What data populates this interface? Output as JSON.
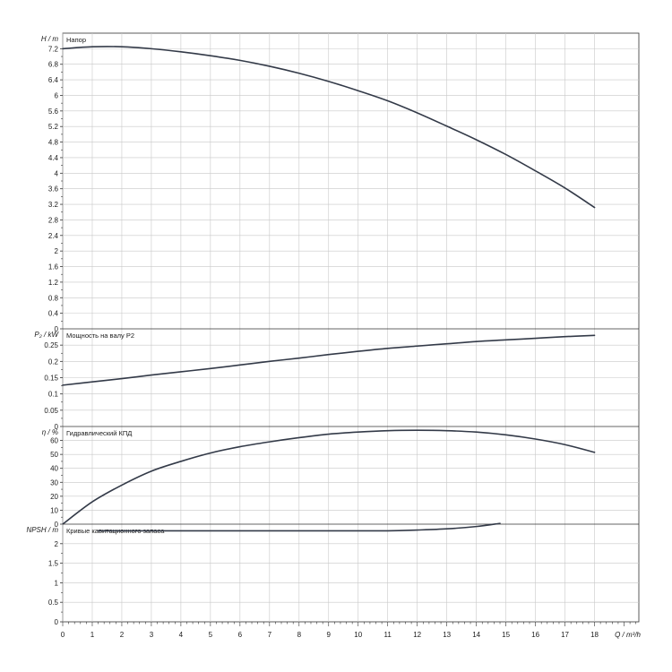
{
  "chart_data": [
    {
      "type": "line",
      "panel": "head",
      "title": "Напор",
      "ylabel": "H / m",
      "xlabel": "Q / m³/h",
      "ylim": [
        0,
        7.6
      ],
      "yticks": [
        "0",
        "0.4",
        "0.8",
        "1.2",
        "1.6",
        "2",
        "2.4",
        "2.8",
        "3.2",
        "3.6",
        "4",
        "4.4",
        "4.8",
        "5.2",
        "5.6",
        "6",
        "6.4",
        "6.8",
        "7.2"
      ],
      "grid": true,
      "series": [
        {
          "x": [
            0,
            1,
            2,
            3,
            4,
            5,
            6,
            7,
            8,
            9,
            10,
            11,
            12,
            13,
            14,
            15,
            16,
            17,
            18
          ],
          "y": [
            7.2,
            7.25,
            7.25,
            7.2,
            7.12,
            7.02,
            6.9,
            6.75,
            6.57,
            6.36,
            6.12,
            5.86,
            5.55,
            5.21,
            4.86,
            4.48,
            4.06,
            3.62,
            3.12
          ]
        }
      ]
    },
    {
      "type": "line",
      "panel": "power",
      "title": "Мощность на валу P2",
      "ylabel": "P₂ / kW",
      "xlabel": "Q / m³/h",
      "ylim": [
        0,
        0.3
      ],
      "yticks": [
        "0",
        "0.05",
        "0.1",
        "0.15",
        "0.2",
        "0.25"
      ],
      "grid": true,
      "series": [
        {
          "x": [
            0,
            1,
            2,
            3,
            4,
            5,
            6,
            7,
            8,
            9,
            10,
            11,
            12,
            13,
            14,
            15,
            16,
            17,
            18
          ],
          "y": [
            0.127,
            0.137,
            0.147,
            0.158,
            0.168,
            0.178,
            0.189,
            0.2,
            0.21,
            0.221,
            0.231,
            0.24,
            0.247,
            0.254,
            0.261,
            0.266,
            0.271,
            0.276,
            0.28
          ]
        }
      ]
    },
    {
      "type": "line",
      "panel": "efficiency",
      "title": "Гидравлический КПД",
      "ylabel": "η / %",
      "xlabel": "Q / m³/h",
      "ylim": [
        0,
        70
      ],
      "yticks": [
        "0",
        "10",
        "20",
        "30",
        "40",
        "50",
        "60"
      ],
      "grid": true,
      "series": [
        {
          "x": [
            0,
            1,
            2,
            3,
            4,
            5,
            6,
            7,
            8,
            9,
            10,
            11,
            12,
            13,
            14,
            15,
            16,
            17,
            18
          ],
          "y": [
            0,
            16,
            28,
            38,
            45,
            51,
            55.5,
            59,
            62,
            64.5,
            66,
            67,
            67.3,
            67,
            66,
            64,
            61,
            57,
            51.5
          ]
        }
      ]
    },
    {
      "type": "line",
      "panel": "npsh",
      "title": "Кривые кавитационного запаса",
      "ylabel": "NPSH / m",
      "xlabel": "Q / m³/h",
      "ylim": [
        0,
        2.5
      ],
      "yticks": [
        "0",
        "0.5",
        "1",
        "1.5",
        "2"
      ],
      "grid": true,
      "series": [
        {
          "x": [
            1.2,
            3,
            5,
            7,
            9,
            11,
            12,
            13,
            14,
            14.8
          ],
          "y": [
            2.33,
            2.33,
            2.33,
            2.33,
            2.33,
            2.33,
            2.35,
            2.38,
            2.44,
            2.52
          ]
        }
      ]
    }
  ],
  "x_axis": {
    "label": "Q / m³/h",
    "xlim": [
      0,
      19.5
    ],
    "ticks": [
      "0",
      "1",
      "2",
      "3",
      "4",
      "5",
      "6",
      "7",
      "8",
      "9",
      "10",
      "11",
      "12",
      "13",
      "14",
      "15",
      "16",
      "17",
      "18"
    ]
  },
  "colors": {
    "curve": "#333a48",
    "grid": "#c8c8c8",
    "frame": "#333333"
  }
}
